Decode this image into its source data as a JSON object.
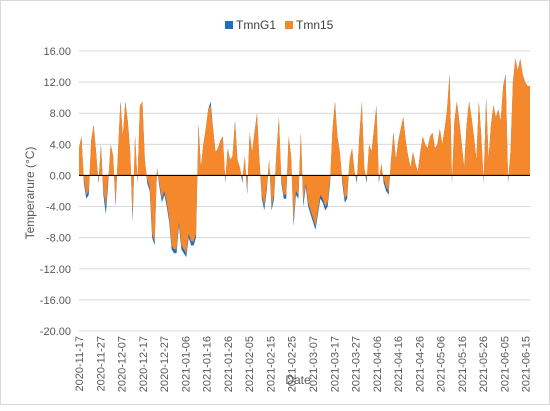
{
  "chart_data": {
    "type": "area",
    "xlabel": "Date",
    "ylabel": "Temperarure (°C)",
    "ylim": [
      -20,
      16
    ],
    "yticks": [
      "16.00",
      "12.00",
      "8.00",
      "4.00",
      "0.00",
      "-4.00",
      "-8.00",
      "-12.00",
      "-16.00",
      "-20.00"
    ],
    "ytick_values": [
      16,
      12,
      8,
      4,
      0,
      -4,
      -8,
      -12,
      -16,
      -20
    ],
    "xticks": [
      "2020-11-17",
      "2020-11-27",
      "2020-12-07",
      "2020-12-17",
      "2020-12-27",
      "2021-01-06",
      "2021-01-16",
      "2021-01-26",
      "2021-02-05",
      "2021-02-15",
      "2021-02-25",
      "2021-03-07",
      "2021-03-17",
      "2021-03-27",
      "2021-04-06",
      "2021-04-16",
      "2021-04-26",
      "2021-05-06",
      "2021-05-16",
      "2021-05-26",
      "2021-06-05",
      "2021-06-15"
    ],
    "x_start": "2020-11-17",
    "x_end": "2021-06-17",
    "legend_position": "top-center",
    "grid": "horizontal",
    "series": [
      {
        "name": "TmnG1",
        "color": "#1f6fc1",
        "values": [
          3.5,
          5,
          -1,
          -3,
          -2.5,
          4.5,
          6.5,
          3,
          -1,
          4,
          -2.5,
          -5,
          -1,
          4,
          2.5,
          -4,
          3,
          9.5,
          5,
          9.5,
          7,
          3,
          -6,
          5,
          -1,
          9,
          9.5,
          2,
          -1,
          -2,
          -8,
          -9,
          1,
          -1.5,
          -3.5,
          -2.5,
          -4,
          -6,
          -9.5,
          -10,
          -10,
          -6.5,
          -9.5,
          -10,
          -10.5,
          -8,
          -9,
          -9,
          -8,
          6.5,
          1,
          4,
          6,
          8.5,
          9.5,
          6,
          3,
          3.5,
          4.5,
          5,
          -1,
          3.5,
          2,
          2.5,
          7,
          2,
          1,
          -1,
          2.5,
          -2.5,
          5.5,
          3,
          5.5,
          8,
          2,
          -3,
          -4.5,
          -2,
          2,
          -4.5,
          -3,
          3,
          7.5,
          -1,
          -3,
          -3,
          5,
          2.5,
          -6.5,
          -2.5,
          -3,
          5.5,
          -4,
          -1.5,
          -4,
          -5,
          -6,
          -7,
          -5,
          -3,
          -3.5,
          -4.5,
          -4,
          -1,
          6,
          9.5,
          5,
          3,
          -1,
          -3.5,
          -3,
          2,
          3.5,
          0.5,
          -1,
          5,
          9.5,
          1,
          -1,
          4,
          3,
          6,
          9,
          -1,
          1.5,
          -1,
          -2,
          -2.5,
          2,
          5.5,
          2,
          4.5,
          6,
          7.5,
          4.5,
          2.5,
          1,
          3,
          1.5,
          0.5,
          3,
          5,
          4,
          3.5,
          5,
          5.5,
          3.5,
          4,
          6,
          4,
          6,
          8.5,
          13,
          -1,
          7,
          9.5,
          7,
          4,
          1,
          6.5,
          9.5,
          7.5,
          5,
          2,
          9.5,
          5,
          -1,
          10,
          2,
          6.5,
          9,
          7.5,
          8.5,
          7,
          11.5,
          13,
          -1,
          3,
          12,
          15,
          13.5,
          15,
          13,
          12,
          11.5,
          11.5
        ]
      },
      {
        "name": "Tmn15",
        "color": "#f5882a",
        "values": [
          3.5,
          5,
          -0.5,
          -2.5,
          -2,
          4.5,
          6.5,
          3,
          -1,
          4,
          -2,
          -4,
          -0.5,
          4,
          2.5,
          -3.5,
          3,
          9.5,
          5,
          9.5,
          7,
          3,
          -5.5,
          5,
          -0.5,
          9,
          9.5,
          2,
          -0.5,
          -1.5,
          -7.5,
          -8.5,
          1,
          -1,
          -3,
          -2,
          -3.5,
          -5.5,
          -9,
          -9.5,
          -9.5,
          -6,
          -9,
          -9.5,
          -10,
          -7.5,
          -8.5,
          -8.5,
          -7.5,
          6.5,
          1,
          4,
          6,
          8.5,
          9,
          6,
          3,
          3.5,
          4.5,
          5,
          -0.5,
          3.5,
          2,
          2.5,
          7,
          2,
          1,
          -0.5,
          2.5,
          -2,
          5.5,
          3,
          5.5,
          8,
          2,
          -2.5,
          -4,
          -1.5,
          2,
          -4,
          -2.5,
          3,
          7.5,
          -0.5,
          -2.5,
          -2.5,
          5,
          2.5,
          -6,
          -2,
          -2.5,
          5.5,
          -3.5,
          -1,
          -3.5,
          -4.5,
          -5.5,
          -6.5,
          -4.5,
          -2.5,
          -3,
          -4,
          -3.5,
          -0.5,
          6,
          9.5,
          5,
          3,
          -0.5,
          -3,
          -2.5,
          2,
          3.5,
          0.5,
          -0.5,
          5,
          9.5,
          1,
          -0.5,
          4,
          3,
          6,
          9,
          -0.5,
          1.5,
          -0.5,
          -1.5,
          -2,
          2,
          5.5,
          2,
          4.5,
          6,
          7.5,
          4.5,
          2.5,
          1,
          3,
          1.5,
          0.5,
          3,
          5,
          4,
          3.5,
          5,
          5.5,
          3.5,
          4,
          6,
          4,
          6,
          8.5,
          13,
          -0.5,
          7,
          9.5,
          7,
          4,
          1,
          6.5,
          9.5,
          7.5,
          5,
          2,
          9.5,
          5,
          -0.5,
          10,
          2,
          6.5,
          9,
          7.5,
          8.5,
          7,
          11.5,
          13,
          -0.5,
          3,
          12,
          15,
          13.5,
          15,
          13,
          12,
          11.5,
          11.5
        ]
      }
    ]
  }
}
